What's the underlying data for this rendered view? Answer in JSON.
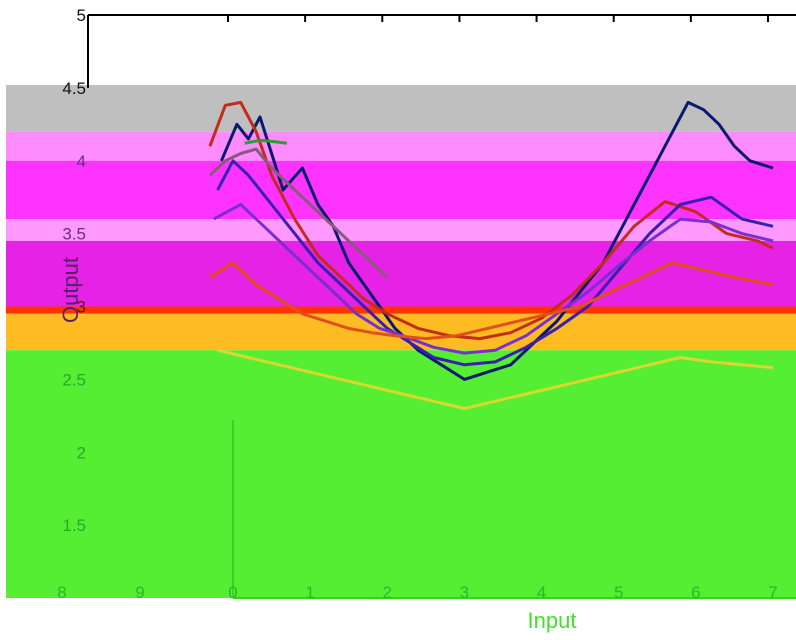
{
  "chart_data": {
    "type": "line",
    "title": "",
    "xlabel": "Input",
    "ylabel": "Output",
    "xlim": [
      0,
      7
    ],
    "ylim": [
      1,
      5
    ],
    "x_ticks": [
      "0",
      "1",
      "2",
      "3",
      "4",
      "5",
      "6",
      "7"
    ],
    "y_ticks": [
      "1.5",
      "2",
      "2.5",
      "3",
      "3.5",
      "4",
      "4.5",
      "5"
    ],
    "left_panel_x_ticks": [
      "8",
      "9"
    ],
    "grid": false,
    "legend": "none",
    "colormap_bands": [
      {
        "from": 4.2,
        "to": 4.52,
        "color": "#bfbfbf"
      },
      {
        "from": 4.0,
        "to": 4.2,
        "color": "#ff8cff"
      },
      {
        "from": 3.6,
        "to": 4.0,
        "color": "#ff33ff"
      },
      {
        "from": 3.45,
        "to": 3.6,
        "color": "#ff99ff"
      },
      {
        "from": 3.0,
        "to": 3.45,
        "color": "#e622e6"
      },
      {
        "from": 2.95,
        "to": 3.0,
        "color": "#ff3300"
      },
      {
        "from": 2.7,
        "to": 2.95,
        "color": "#ffbb22"
      },
      {
        "from": 1.0,
        "to": 2.7,
        "color": "#55ee33"
      }
    ],
    "series": [
      {
        "color": "#0a1a6e",
        "points": [
          [
            -0.15,
            4.0
          ],
          [
            0.05,
            4.25
          ],
          [
            0.2,
            4.15
          ],
          [
            0.35,
            4.3
          ],
          [
            0.5,
            4.05
          ],
          [
            0.65,
            3.8
          ],
          [
            0.9,
            3.95
          ],
          [
            1.1,
            3.7
          ],
          [
            1.3,
            3.55
          ],
          [
            1.5,
            3.3
          ],
          [
            1.7,
            3.15
          ],
          [
            1.9,
            3.0
          ],
          [
            2.1,
            2.85
          ],
          [
            2.4,
            2.7
          ],
          [
            2.7,
            2.6
          ],
          [
            3.0,
            2.5
          ],
          [
            3.3,
            2.55
          ],
          [
            3.6,
            2.6
          ],
          [
            3.9,
            2.75
          ],
          [
            4.2,
            2.9
          ],
          [
            4.5,
            3.1
          ],
          [
            4.8,
            3.3
          ],
          [
            5.1,
            3.6
          ],
          [
            5.4,
            3.9
          ],
          [
            5.7,
            4.2
          ],
          [
            5.9,
            4.4
          ],
          [
            6.1,
            4.35
          ],
          [
            6.3,
            4.25
          ],
          [
            6.5,
            4.1
          ],
          [
            6.7,
            4.0
          ],
          [
            7.0,
            3.95
          ]
        ]
      },
      {
        "color": "#c22d1a",
        "points": [
          [
            -0.3,
            4.1
          ],
          [
            -0.1,
            4.38
          ],
          [
            0.1,
            4.4
          ],
          [
            0.3,
            4.2
          ],
          [
            0.5,
            3.9
          ],
          [
            0.8,
            3.6
          ],
          [
            1.1,
            3.35
          ],
          [
            1.4,
            3.2
          ],
          [
            1.7,
            3.05
          ],
          [
            2.0,
            2.95
          ],
          [
            2.4,
            2.85
          ],
          [
            2.8,
            2.8
          ],
          [
            3.2,
            2.78
          ],
          [
            3.6,
            2.82
          ],
          [
            4.0,
            2.92
          ],
          [
            4.4,
            3.08
          ],
          [
            4.8,
            3.3
          ],
          [
            5.2,
            3.55
          ],
          [
            5.6,
            3.72
          ],
          [
            6.0,
            3.65
          ],
          [
            6.4,
            3.5
          ],
          [
            6.8,
            3.45
          ],
          [
            7.0,
            3.4
          ]
        ]
      },
      {
        "color": "#3a1fb0",
        "points": [
          [
            -0.2,
            3.8
          ],
          [
            0.0,
            4.0
          ],
          [
            0.2,
            3.9
          ],
          [
            0.5,
            3.7
          ],
          [
            0.8,
            3.5
          ],
          [
            1.1,
            3.3
          ],
          [
            1.4,
            3.15
          ],
          [
            1.7,
            3.0
          ],
          [
            2.0,
            2.85
          ],
          [
            2.3,
            2.75
          ],
          [
            2.6,
            2.65
          ],
          [
            3.0,
            2.6
          ],
          [
            3.4,
            2.62
          ],
          [
            3.8,
            2.72
          ],
          [
            4.2,
            2.85
          ],
          [
            4.6,
            3.0
          ],
          [
            5.0,
            3.25
          ],
          [
            5.4,
            3.5
          ],
          [
            5.8,
            3.7
          ],
          [
            6.2,
            3.75
          ],
          [
            6.6,
            3.6
          ],
          [
            7.0,
            3.55
          ]
        ]
      },
      {
        "color": "#7a2fd0",
        "points": [
          [
            -0.25,
            3.6
          ],
          [
            0.1,
            3.7
          ],
          [
            0.4,
            3.55
          ],
          [
            0.7,
            3.4
          ],
          [
            1.0,
            3.25
          ],
          [
            1.3,
            3.1
          ],
          [
            1.6,
            2.95
          ],
          [
            1.9,
            2.85
          ],
          [
            2.2,
            2.8
          ],
          [
            2.6,
            2.72
          ],
          [
            3.0,
            2.68
          ],
          [
            3.4,
            2.7
          ],
          [
            3.8,
            2.8
          ],
          [
            4.2,
            2.95
          ],
          [
            4.6,
            3.1
          ],
          [
            5.0,
            3.28
          ],
          [
            5.4,
            3.45
          ],
          [
            5.8,
            3.6
          ],
          [
            6.2,
            3.58
          ],
          [
            6.6,
            3.5
          ],
          [
            7.0,
            3.45
          ]
        ]
      },
      {
        "color": "#e0501a",
        "points": [
          [
            -0.3,
            3.2
          ],
          [
            0.0,
            3.3
          ],
          [
            0.3,
            3.15
          ],
          [
            0.6,
            3.05
          ],
          [
            0.9,
            2.95
          ],
          [
            1.2,
            2.9
          ],
          [
            1.5,
            2.85
          ],
          [
            1.8,
            2.82
          ],
          [
            2.1,
            2.8
          ],
          [
            2.5,
            2.78
          ],
          [
            2.9,
            2.8
          ],
          [
            3.3,
            2.85
          ],
          [
            3.7,
            2.9
          ],
          [
            4.1,
            2.95
          ],
          [
            4.5,
            3.0
          ],
          [
            4.9,
            3.1
          ],
          [
            5.3,
            3.2
          ],
          [
            5.7,
            3.3
          ],
          [
            6.1,
            3.25
          ],
          [
            6.5,
            3.2
          ],
          [
            7.0,
            3.15
          ]
        ]
      },
      {
        "color": "#d8d830",
        "points": [
          [
            -0.2,
            2.7
          ],
          [
            0.2,
            2.65
          ],
          [
            0.6,
            2.6
          ],
          [
            1.0,
            2.55
          ],
          [
            1.4,
            2.5
          ],
          [
            1.8,
            2.45
          ],
          [
            2.2,
            2.4
          ],
          [
            2.6,
            2.35
          ],
          [
            3.0,
            2.3
          ],
          [
            3.4,
            2.35
          ],
          [
            3.8,
            2.4
          ],
          [
            4.2,
            2.45
          ],
          [
            4.6,
            2.5
          ],
          [
            5.0,
            2.55
          ],
          [
            5.4,
            2.6
          ],
          [
            5.8,
            2.65
          ],
          [
            6.2,
            2.62
          ],
          [
            6.6,
            2.6
          ],
          [
            7.0,
            2.58
          ]
        ]
      },
      {
        "color": "#2aa02a",
        "points": [
          [
            0.15,
            4.12
          ],
          [
            0.35,
            4.14
          ],
          [
            0.55,
            4.13
          ],
          [
            0.7,
            4.12
          ]
        ]
      },
      {
        "color": "#8a5a7a",
        "points": [
          [
            -0.3,
            3.9
          ],
          [
            -0.1,
            4.0
          ],
          [
            0.1,
            4.05
          ],
          [
            0.3,
            4.08
          ],
          [
            0.5,
            3.95
          ],
          [
            0.8,
            3.8
          ],
          [
            1.1,
            3.65
          ],
          [
            1.4,
            3.5
          ],
          [
            1.7,
            3.35
          ],
          [
            2.0,
            3.2
          ]
        ]
      }
    ]
  }
}
